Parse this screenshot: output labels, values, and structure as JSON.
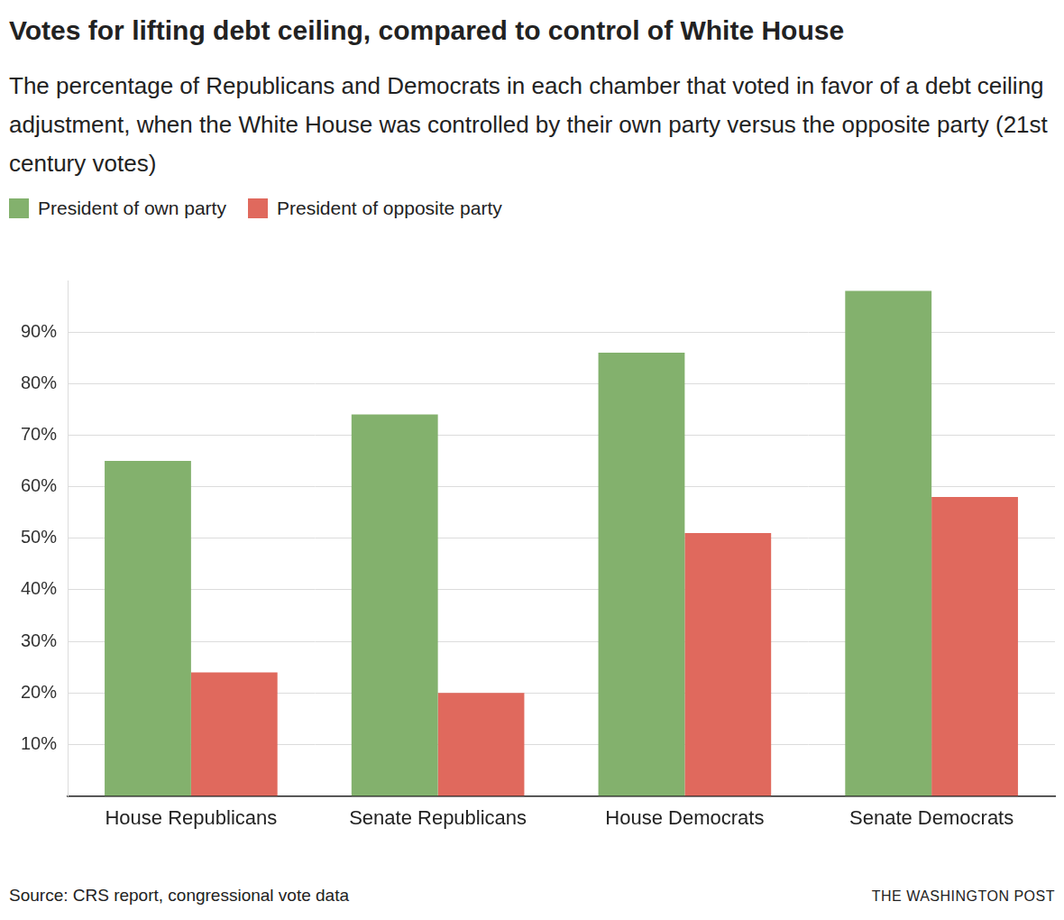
{
  "chart_data": {
    "type": "bar",
    "title": "Votes for lifting debt ceiling, compared to control of White House",
    "subtitle": "The percentage of Republicans and Democrats in each chamber that voted in favor of a debt ceiling adjustment, when the White House was controlled by their own party versus the opposite party (21st century votes)",
    "source": "Source: CRS report, congressional vote data",
    "credit": "THE WASHINGTON POST",
    "categories": [
      "House Republicans",
      "Senate Republicans",
      "House Democrats",
      "Senate Democrats"
    ],
    "series": [
      {
        "name": "President of own party",
        "color": "#83b16d",
        "values": [
          65,
          74,
          86,
          98
        ]
      },
      {
        "name": "President of opposite party",
        "color": "#e0695d",
        "values": [
          24,
          20,
          51,
          58
        ]
      }
    ],
    "ylim": [
      0,
      100
    ],
    "yticks": [
      {
        "value": 10,
        "label": "10%"
      },
      {
        "value": 20,
        "label": "20%"
      },
      {
        "value": 30,
        "label": "30%"
      },
      {
        "value": 40,
        "label": "40%"
      },
      {
        "value": 50,
        "label": "50%"
      },
      {
        "value": 60,
        "label": "60%"
      },
      {
        "value": 70,
        "label": "70%"
      },
      {
        "value": 80,
        "label": "80%"
      },
      {
        "value": 90,
        "label": "90%"
      }
    ],
    "grid": true,
    "legend": "top-left"
  }
}
